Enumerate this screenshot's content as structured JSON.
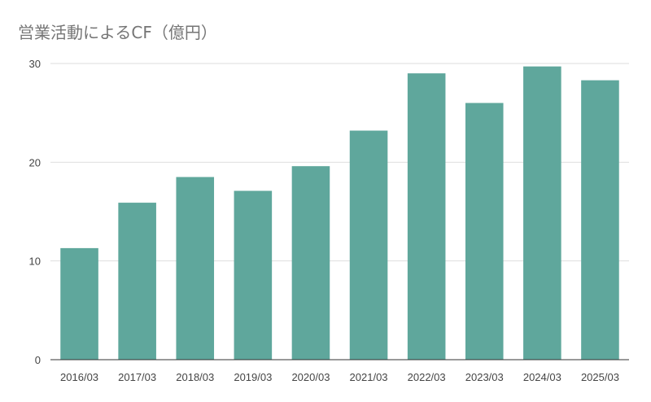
{
  "chart_data": {
    "type": "bar",
    "title": "営業活動によるCF（億円）",
    "xlabel": "",
    "ylabel": "",
    "categories": [
      "2016/03",
      "2017/03",
      "2018/03",
      "2019/03",
      "2020/03",
      "2021/03",
      "2022/03",
      "2023/03",
      "2024/03",
      "2025/03"
    ],
    "values": [
      11.3,
      15.9,
      18.5,
      17.1,
      19.6,
      23.2,
      29.0,
      26.0,
      29.7,
      28.3
    ],
    "ylim": [
      0,
      30
    ],
    "yticks": [
      "0",
      "10",
      "20",
      "30"
    ],
    "grid": true,
    "legend": "none",
    "bar_color": "#5fa79c"
  }
}
